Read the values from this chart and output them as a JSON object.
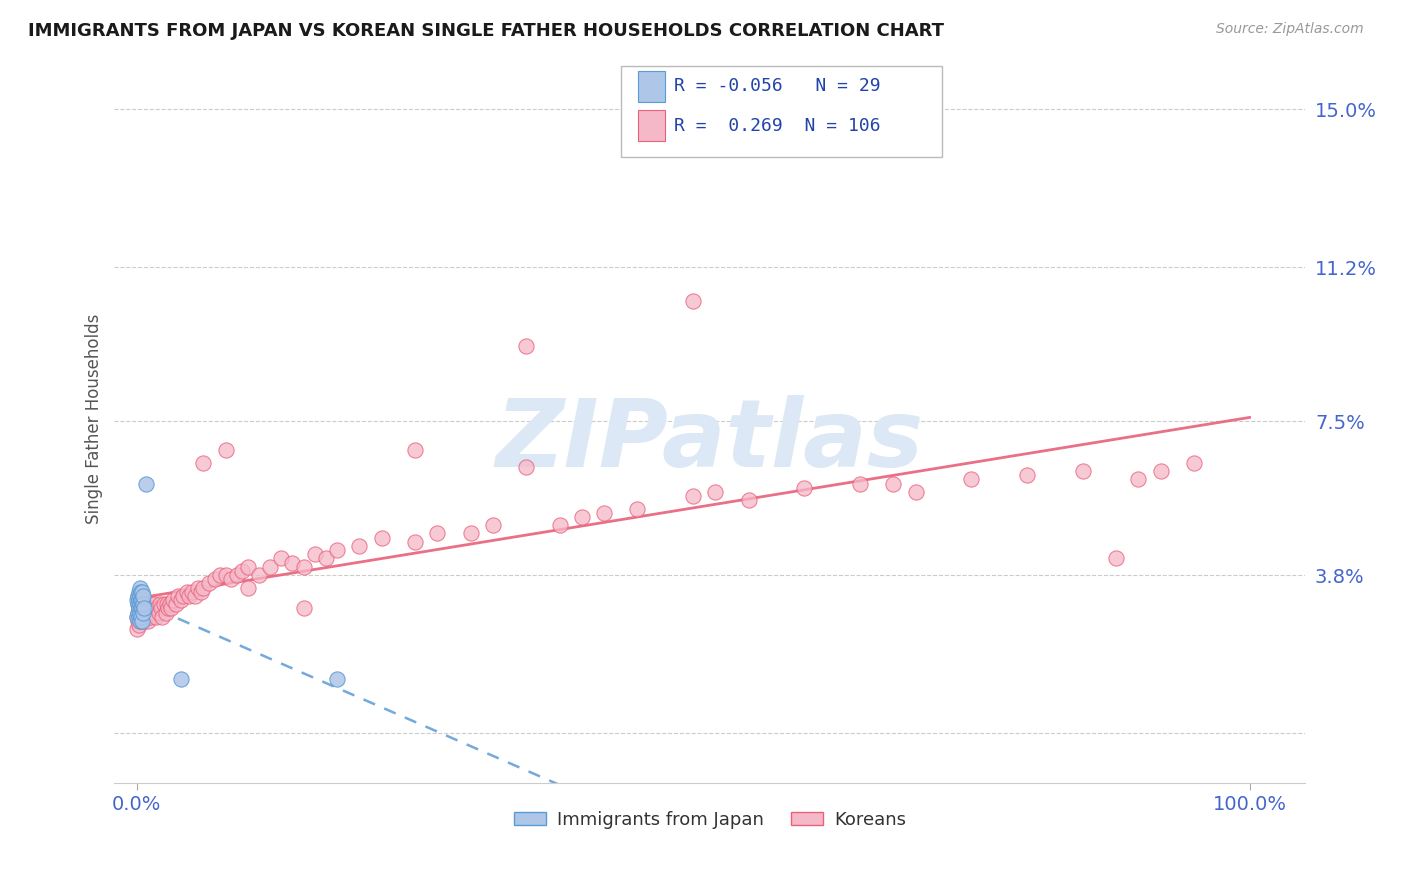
{
  "title": "IMMIGRANTS FROM JAPAN VS KOREAN SINGLE FATHER HOUSEHOLDS CORRELATION CHART",
  "source": "Source: ZipAtlas.com",
  "ylabel": "Single Father Households",
  "legend_label1": "Immigrants from Japan",
  "legend_label2": "Koreans",
  "R1": -0.056,
  "N1": 29,
  "R2": 0.269,
  "N2": 106,
  "color1": "#aec6e8",
  "color1_edge": "#5b9bd5",
  "color2": "#f5b8c8",
  "color2_edge": "#e8607a",
  "trendline1_color": "#5b9bd5",
  "trendline2_color": "#e8607a",
  "ytick_vals": [
    0.0,
    0.038,
    0.075,
    0.112,
    0.15
  ],
  "ytick_labels": [
    "",
    "3.8%",
    "7.5%",
    "11.2%",
    "15.0%"
  ],
  "xlim": [
    -0.02,
    1.05
  ],
  "ylim": [
    -0.012,
    0.163
  ],
  "background_color": "#ffffff",
  "watermark_color": "#dce8f5",
  "japan_x": [
    0.0,
    0.0,
    0.001,
    0.001,
    0.001,
    0.002,
    0.002,
    0.002,
    0.002,
    0.003,
    0.003,
    0.003,
    0.003,
    0.003,
    0.004,
    0.004,
    0.004,
    0.004,
    0.005,
    0.005,
    0.005,
    0.005,
    0.006,
    0.006,
    0.006,
    0.007,
    0.008,
    0.04,
    0.18
  ],
  "japan_y": [
    0.028,
    0.032,
    0.029,
    0.031,
    0.033,
    0.028,
    0.03,
    0.032,
    0.034,
    0.027,
    0.029,
    0.031,
    0.033,
    0.035,
    0.028,
    0.03,
    0.032,
    0.034,
    0.027,
    0.03,
    0.032,
    0.034,
    0.029,
    0.031,
    0.033,
    0.03,
    0.06,
    0.013,
    0.013
  ],
  "korean_x": [
    0.0,
    0.0,
    0.001,
    0.001,
    0.001,
    0.001,
    0.002,
    0.002,
    0.002,
    0.002,
    0.003,
    0.003,
    0.003,
    0.004,
    0.004,
    0.004,
    0.005,
    0.005,
    0.005,
    0.006,
    0.006,
    0.007,
    0.007,
    0.008,
    0.008,
    0.009,
    0.01,
    0.01,
    0.011,
    0.012,
    0.013,
    0.014,
    0.015,
    0.016,
    0.017,
    0.018,
    0.02,
    0.021,
    0.022,
    0.023,
    0.025,
    0.026,
    0.027,
    0.028,
    0.03,
    0.031,
    0.033,
    0.035,
    0.037,
    0.04,
    0.042,
    0.045,
    0.047,
    0.05,
    0.052,
    0.055,
    0.058,
    0.06,
    0.065,
    0.07,
    0.075,
    0.08,
    0.085,
    0.09,
    0.095,
    0.1,
    0.11,
    0.12,
    0.13,
    0.14,
    0.15,
    0.16,
    0.17,
    0.18,
    0.2,
    0.22,
    0.25,
    0.27,
    0.3,
    0.32,
    0.35,
    0.38,
    0.4,
    0.42,
    0.45,
    0.5,
    0.52,
    0.55,
    0.6,
    0.65,
    0.68,
    0.7,
    0.75,
    0.8,
    0.85,
    0.88,
    0.9,
    0.92,
    0.95,
    0.5,
    0.35,
    0.25,
    0.15,
    0.1,
    0.08,
    0.06
  ],
  "korean_y": [
    0.025,
    0.028,
    0.027,
    0.029,
    0.031,
    0.033,
    0.026,
    0.028,
    0.03,
    0.032,
    0.027,
    0.029,
    0.031,
    0.028,
    0.03,
    0.032,
    0.027,
    0.029,
    0.031,
    0.028,
    0.03,
    0.027,
    0.029,
    0.028,
    0.03,
    0.029,
    0.027,
    0.03,
    0.029,
    0.031,
    0.028,
    0.03,
    0.029,
    0.031,
    0.028,
    0.03,
    0.029,
    0.031,
    0.03,
    0.028,
    0.031,
    0.029,
    0.031,
    0.03,
    0.031,
    0.03,
    0.032,
    0.031,
    0.033,
    0.032,
    0.033,
    0.034,
    0.033,
    0.034,
    0.033,
    0.035,
    0.034,
    0.035,
    0.036,
    0.037,
    0.038,
    0.038,
    0.037,
    0.038,
    0.039,
    0.04,
    0.038,
    0.04,
    0.042,
    0.041,
    0.04,
    0.043,
    0.042,
    0.044,
    0.045,
    0.047,
    0.046,
    0.048,
    0.048,
    0.05,
    0.064,
    0.05,
    0.052,
    0.053,
    0.054,
    0.057,
    0.058,
    0.056,
    0.059,
    0.06,
    0.06,
    0.058,
    0.061,
    0.062,
    0.063,
    0.042,
    0.061,
    0.063,
    0.065,
    0.104,
    0.093,
    0.068,
    0.03,
    0.035,
    0.068,
    0.065
  ]
}
